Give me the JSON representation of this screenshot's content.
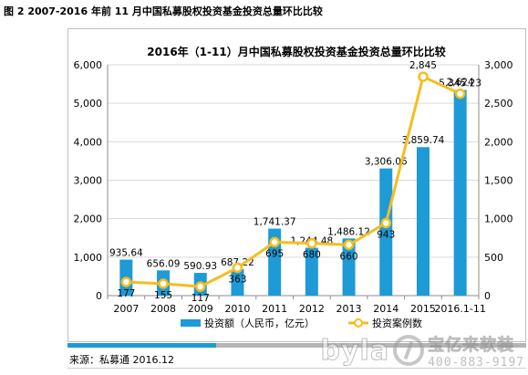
{
  "figure_caption": "图 2 2007-2016 年前 11 月中国私募股权投资基金投资总量环比比较",
  "source": "来源：私募通 2016.12",
  "watermark": {
    "brand": "byla",
    "name": "宝亿来软装",
    "phone": "400-883-9197"
  },
  "colors": {
    "bar": "#1e9ad6",
    "line": "#f5bd1f",
    "line_marker_fill": "#ffffff",
    "stripe_blue": "#1e9ad6",
    "stripe_gray": "#b5b5b5"
  },
  "chart_data": {
    "type": "bar",
    "title": "2016年（1-11）月中国私募股权投资基金投资总量环比比较",
    "categories": [
      "2007",
      "2008",
      "2009",
      "2010",
      "2011",
      "2012",
      "2013",
      "2014",
      "2015",
      "2016.1-11"
    ],
    "series": [
      {
        "name": "投资额（人民币，亿元）",
        "type": "bar",
        "axis": "left",
        "values": [
          935.64,
          656.09,
          590.93,
          687.22,
          1741.37,
          1244.48,
          1486.12,
          3306.06,
          3859.74,
          5345.23
        ],
        "labels": [
          "935.64",
          "656.09",
          "590.93",
          "687.22",
          "1,741.37",
          "1,244.48",
          "1,486.12",
          "3,306.06",
          "3,859.74",
          "5,345.23"
        ]
      },
      {
        "name": "投资案例数",
        "type": "line",
        "axis": "right",
        "values": [
          177,
          155,
          117,
          363,
          695,
          680,
          660,
          943,
          2845,
          2624
        ],
        "labels": [
          "177",
          "155",
          "117",
          "363",
          "695",
          "680",
          "660",
          "943",
          "2,845",
          "2,624"
        ]
      }
    ],
    "ylim_left": [
      0,
      6000
    ],
    "ylim_right": [
      0,
      3000
    ],
    "yticks_left": [
      "0",
      "1,000",
      "2,000",
      "3,000",
      "4,000",
      "5,000",
      "6,000"
    ],
    "yticks_right": [
      "0",
      "500",
      "1,000",
      "1,500",
      "2,000",
      "2,500",
      "3,000"
    ],
    "legend": {
      "position": "bottom",
      "entries": [
        "投资额（人民币，亿元）",
        "投资案例数"
      ]
    }
  }
}
